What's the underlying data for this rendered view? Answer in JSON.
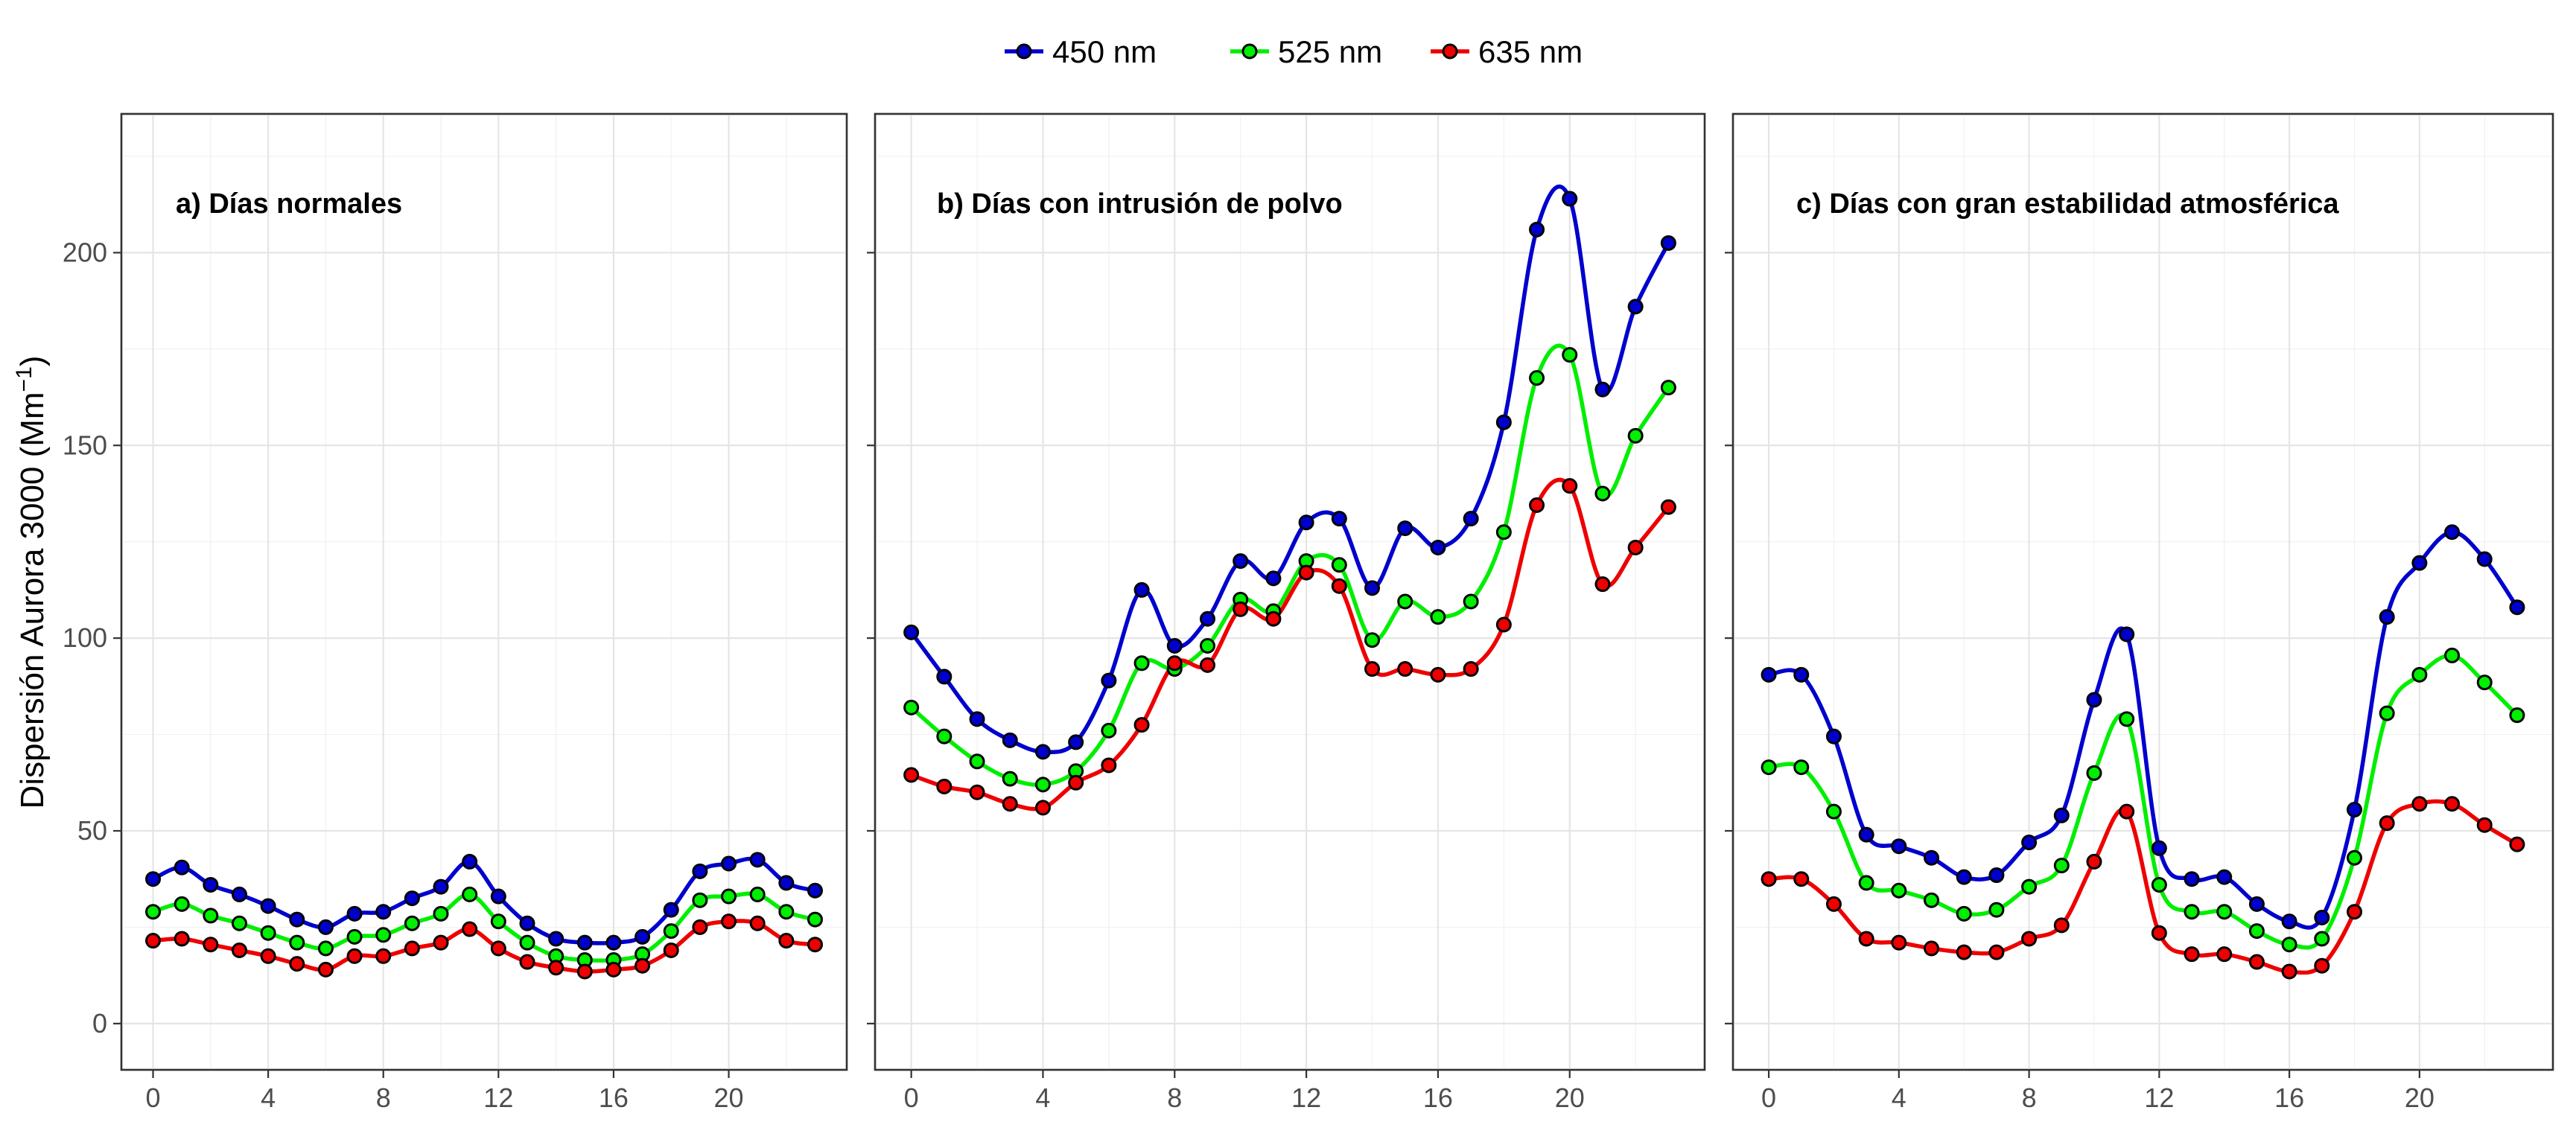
{
  "chart_data": {
    "type": "line",
    "ylabel": "Dispersión Aurora 3000 (Mm",
    "ylabel_sup": "−1",
    "ylabel_close": ")",
    "ylim": [
      -12,
      236
    ],
    "yticks": [
      0,
      50,
      100,
      150,
      200
    ],
    "xlim": [
      -1.1,
      24.1
    ],
    "xticks": [
      0,
      4,
      8,
      12,
      16,
      20
    ],
    "legend": {
      "position": "top",
      "entries": [
        {
          "name": "450 nm",
          "color": "#0000CD"
        },
        {
          "name": "525 nm",
          "color": "#00EE00"
        },
        {
          "name": "635 nm",
          "color": "#EE0000"
        }
      ]
    },
    "grid": true,
    "x": [
      0,
      1,
      2,
      3,
      4,
      5,
      6,
      7,
      8,
      9,
      10,
      11,
      12,
      13,
      14,
      15,
      16,
      17,
      18,
      19,
      20,
      21,
      22,
      23
    ],
    "panels": [
      {
        "title": "a) Días normales",
        "series": [
          {
            "name": "450 nm",
            "values": [
              37.5,
              40.5,
              36,
              33.5,
              30.5,
              27,
              25,
              28.5,
              29,
              32.5,
              35.5,
              42,
              33,
              26,
              22,
              21,
              21,
              22.5,
              29.5,
              39.5,
              41.5,
              42.5,
              36.5,
              34.5
            ]
          },
          {
            "name": "525 nm",
            "values": [
              29,
              31,
              28,
              26,
              23.5,
              21,
              19.5,
              22.5,
              23,
              26,
              28.5,
              33.5,
              26.5,
              21,
              17.5,
              16.5,
              16.5,
              18,
              24,
              32,
              33,
              33.5,
              29,
              27
            ]
          },
          {
            "name": "635 nm",
            "values": [
              21.5,
              22,
              20.5,
              19,
              17.5,
              15.5,
              14,
              17.5,
              17.5,
              19.5,
              21,
              24.5,
              19.5,
              16,
              14.5,
              13.5,
              14,
              15,
              19,
              25,
              26.5,
              26,
              21.5,
              20.5
            ]
          }
        ]
      },
      {
        "title": "b) Días con intrusión de polvo",
        "series": [
          {
            "name": "450 nm",
            "values": [
              101.5,
              90,
              79,
              73.5,
              70.5,
              73,
              89,
              112.5,
              98,
              105,
              120,
              115.5,
              130,
              131,
              113,
              128.5,
              123.5,
              131,
              156,
              206,
              214,
              164.5,
              186,
              202.5
            ]
          },
          {
            "name": "525 nm",
            "values": [
              82,
              74.5,
              68,
              63.5,
              62,
              65.5,
              76,
              93.5,
              92,
              98,
              110,
              107,
              120,
              119,
              99.5,
              109.5,
              105.5,
              109.5,
              127.5,
              167.5,
              173.5,
              137.5,
              152.5,
              165
            ]
          },
          {
            "name": "635 nm",
            "values": [
              64.5,
              61.5,
              60,
              57,
              56,
              62.5,
              67,
              77.5,
              93.5,
              93,
              107.5,
              105,
              117,
              113.5,
              92,
              92,
              90.5,
              92,
              103.5,
              134.5,
              139.5,
              114,
              123.5,
              134
            ]
          }
        ]
      },
      {
        "title": "c) Días con gran estabilidad atmosférica",
        "series": [
          {
            "name": "450 nm",
            "values": [
              90.5,
              90.5,
              74.5,
              49,
              46,
              43,
              38,
              38.5,
              47,
              54,
              84,
              101,
              45.5,
              37.5,
              38,
              31,
              26.5,
              27.5,
              55.5,
              105.5,
              119.5,
              127.5,
              120.5,
              108
            ]
          },
          {
            "name": "525 nm",
            "values": [
              66.5,
              66.5,
              55,
              36.5,
              34.5,
              32,
              28.5,
              29.5,
              35.5,
              41,
              65,
              79,
              36,
              29,
              29,
              24,
              20.5,
              22,
              43,
              80.5,
              90.5,
              95.5,
              88.5,
              80
            ]
          },
          {
            "name": "635 nm",
            "values": [
              37.5,
              37.5,
              31,
              22,
              21,
              19.5,
              18.5,
              18.5,
              22,
              25.5,
              42,
              55,
              23.5,
              18,
              18,
              16,
              13.5,
              15,
              29,
              52,
              57,
              57,
              51.5,
              46.5
            ]
          }
        ]
      }
    ]
  }
}
